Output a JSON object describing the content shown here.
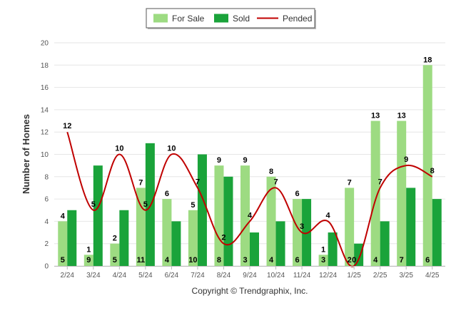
{
  "chart_data": {
    "type": "bar",
    "title": "",
    "xlabel": "",
    "ylabel": "Number of Homes",
    "ylim": [
      0,
      20
    ],
    "yticks": [
      0,
      2,
      4,
      6,
      8,
      10,
      12,
      14,
      16,
      18,
      20
    ],
    "grid": true,
    "legend_position": "top-center",
    "categories": [
      "2/24",
      "3/24",
      "4/24",
      "5/24",
      "6/24",
      "7/24",
      "8/24",
      "9/24",
      "10/24",
      "11/24",
      "12/24",
      "1/25",
      "2/25",
      "3/25",
      "4/25"
    ],
    "series": [
      {
        "name": "For Sale",
        "kind": "bar",
        "color": "#9ddb82",
        "values": [
          4,
          1,
          2,
          7,
          6,
          5,
          9,
          9,
          8,
          6,
          1,
          7,
          13,
          13,
          18
        ]
      },
      {
        "name": "Sold",
        "kind": "bar",
        "color": "#1aa33a",
        "values": [
          5,
          9,
          5,
          11,
          4,
          10,
          8,
          3,
          4,
          6,
          3,
          2,
          4,
          7,
          6
        ]
      },
      {
        "name": "Pended",
        "kind": "line",
        "color": "#c00000",
        "values": [
          12,
          5,
          10,
          5,
          10,
          7,
          2,
          4,
          7,
          3,
          4,
          0,
          7,
          9,
          8
        ]
      }
    ],
    "footer": "Copyright © Trendgraphix, Inc."
  }
}
